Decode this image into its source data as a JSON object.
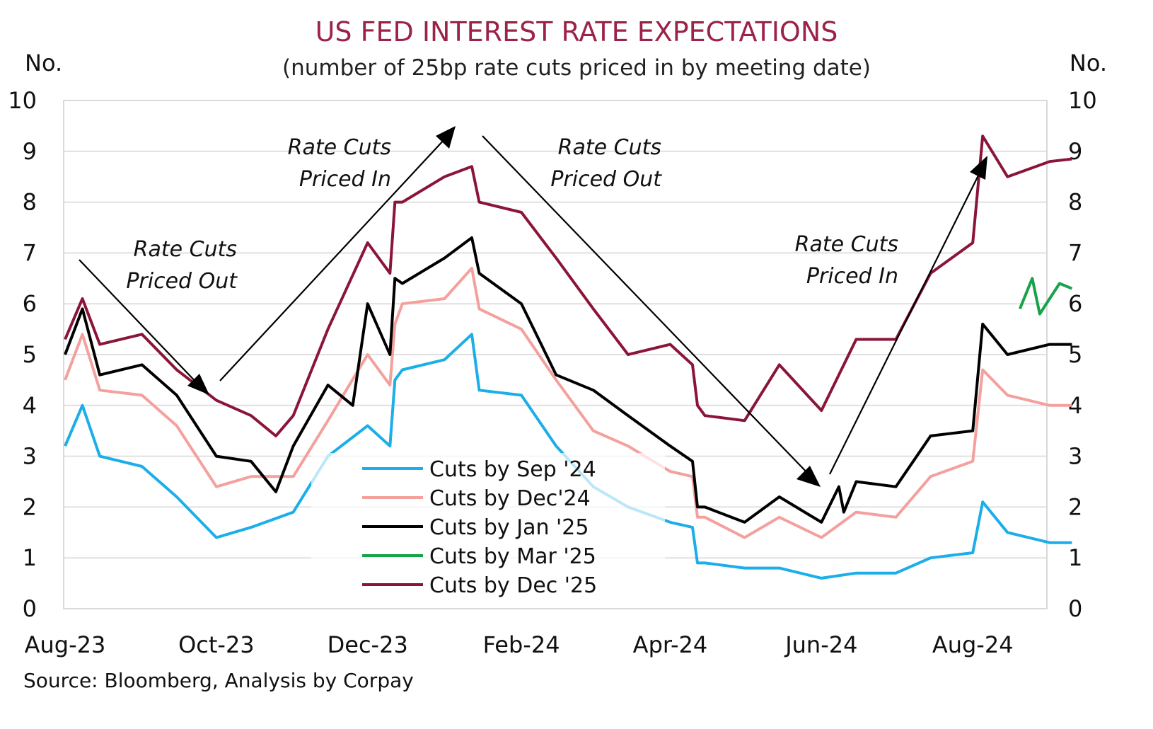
{
  "chart_data": {
    "type": "line",
    "title": "US FED INTEREST RATE EXPECTATIONS",
    "subtitle": "(number of 25bp rate cuts priced in by meeting date)",
    "ylabel_left": "No.",
    "ylabel_right": "No.",
    "ylim": [
      0,
      10
    ],
    "yticks": [
      "0",
      "1",
      "2",
      "3",
      "4",
      "5",
      "6",
      "7",
      "8",
      "9",
      "10"
    ],
    "xlim": [
      "2023-08-01",
      "2024-09-15"
    ],
    "xticks": [
      {
        "label": "Aug-23",
        "date": "2023-08-01"
      },
      {
        "label": "Oct-23",
        "date": "2023-10-01"
      },
      {
        "label": "Dec-23",
        "date": "2023-12-01"
      },
      {
        "label": "Feb-24",
        "date": "2024-02-01"
      },
      {
        "label": "Apr-24",
        "date": "2024-04-01"
      },
      {
        "label": "Jun-24",
        "date": "2024-06-01"
      },
      {
        "label": "Aug-24",
        "date": "2024-08-01"
      }
    ],
    "grid": true,
    "legend_position": "bottom-center",
    "source": "Source: Bloomberg, Analysis by Corpay",
    "annotations": [
      {
        "line1": "Rate Cuts",
        "line2": "Priced Out"
      },
      {
        "line1": "Rate Cuts",
        "line2": "Priced In"
      },
      {
        "line1": "Rate Cuts",
        "line2": "Priced Out"
      },
      {
        "line1": "Rate Cuts",
        "line2": "Priced In"
      }
    ],
    "series": [
      {
        "name": "Cuts by Sep '24",
        "color": "#1BAEE8",
        "points": [
          [
            "2023-08-01",
            3.2
          ],
          [
            "2023-08-08",
            4.0
          ],
          [
            "2023-08-15",
            3.0
          ],
          [
            "2023-09-01",
            2.8
          ],
          [
            "2023-09-15",
            2.2
          ],
          [
            "2023-10-01",
            1.4
          ],
          [
            "2023-10-15",
            1.6
          ],
          [
            "2023-11-01",
            1.9
          ],
          [
            "2023-11-15",
            3.0
          ],
          [
            "2023-12-01",
            3.6
          ],
          [
            "2023-12-10",
            3.2
          ],
          [
            "2023-12-12",
            4.5
          ],
          [
            "2023-12-15",
            4.7
          ],
          [
            "2024-01-01",
            4.9
          ],
          [
            "2024-01-12",
            5.4
          ],
          [
            "2024-01-15",
            4.3
          ],
          [
            "2024-02-01",
            4.2
          ],
          [
            "2024-02-15",
            3.2
          ],
          [
            "2024-03-01",
            2.4
          ],
          [
            "2024-03-15",
            2.0
          ],
          [
            "2024-04-01",
            1.7
          ],
          [
            "2024-04-10",
            1.6
          ],
          [
            "2024-04-12",
            0.9
          ],
          [
            "2024-04-15",
            0.9
          ],
          [
            "2024-05-01",
            0.8
          ],
          [
            "2024-05-15",
            0.8
          ],
          [
            "2024-06-01",
            0.6
          ],
          [
            "2024-06-15",
            0.7
          ],
          [
            "2024-07-01",
            0.7
          ],
          [
            "2024-07-15",
            1.0
          ],
          [
            "2024-08-01",
            1.1
          ],
          [
            "2024-08-05",
            2.1
          ],
          [
            "2024-08-15",
            1.5
          ],
          [
            "2024-09-01",
            1.3
          ],
          [
            "2024-09-10",
            1.3
          ]
        ]
      },
      {
        "name": "Cuts by Dec'24",
        "color": "#F4A09C",
        "points": [
          [
            "2023-08-01",
            4.5
          ],
          [
            "2023-08-08",
            5.4
          ],
          [
            "2023-08-15",
            4.3
          ],
          [
            "2023-09-01",
            4.2
          ],
          [
            "2023-09-15",
            3.6
          ],
          [
            "2023-10-01",
            2.4
          ],
          [
            "2023-10-15",
            2.6
          ],
          [
            "2023-11-01",
            2.6
          ],
          [
            "2023-11-15",
            3.7
          ],
          [
            "2023-12-01",
            5.0
          ],
          [
            "2023-12-10",
            4.4
          ],
          [
            "2023-12-12",
            5.6
          ],
          [
            "2023-12-15",
            6.0
          ],
          [
            "2024-01-01",
            6.1
          ],
          [
            "2024-01-12",
            6.7
          ],
          [
            "2024-01-15",
            5.9
          ],
          [
            "2024-02-01",
            5.5
          ],
          [
            "2024-02-15",
            4.5
          ],
          [
            "2024-03-01",
            3.5
          ],
          [
            "2024-03-15",
            3.2
          ],
          [
            "2024-04-01",
            2.7
          ],
          [
            "2024-04-10",
            2.6
          ],
          [
            "2024-04-12",
            1.8
          ],
          [
            "2024-04-15",
            1.8
          ],
          [
            "2024-05-01",
            1.4
          ],
          [
            "2024-05-15",
            1.8
          ],
          [
            "2024-06-01",
            1.4
          ],
          [
            "2024-06-15",
            1.9
          ],
          [
            "2024-07-01",
            1.8
          ],
          [
            "2024-07-15",
            2.6
          ],
          [
            "2024-08-01",
            2.9
          ],
          [
            "2024-08-05",
            4.7
          ],
          [
            "2024-08-15",
            4.2
          ],
          [
            "2024-09-01",
            4.0
          ],
          [
            "2024-09-10",
            4.0
          ]
        ]
      },
      {
        "name": "Cuts by Jan '25",
        "color": "#000000",
        "points": [
          [
            "2023-08-01",
            5.0
          ],
          [
            "2023-08-08",
            5.9
          ],
          [
            "2023-08-15",
            4.6
          ],
          [
            "2023-09-01",
            4.8
          ],
          [
            "2023-09-15",
            4.2
          ],
          [
            "2023-10-01",
            3.0
          ],
          [
            "2023-10-15",
            2.9
          ],
          [
            "2023-10-25",
            2.3
          ],
          [
            "2023-11-01",
            3.2
          ],
          [
            "2023-11-15",
            4.4
          ],
          [
            "2023-11-25",
            4.0
          ],
          [
            "2023-12-01",
            6.0
          ],
          [
            "2023-12-10",
            5.0
          ],
          [
            "2023-12-12",
            6.5
          ],
          [
            "2023-12-15",
            6.4
          ],
          [
            "2024-01-01",
            6.9
          ],
          [
            "2024-01-12",
            7.3
          ],
          [
            "2024-01-15",
            6.6
          ],
          [
            "2024-02-01",
            6.0
          ],
          [
            "2024-02-15",
            4.6
          ],
          [
            "2024-03-01",
            4.3
          ],
          [
            "2024-03-15",
            3.8
          ],
          [
            "2024-04-01",
            3.2
          ],
          [
            "2024-04-10",
            2.9
          ],
          [
            "2024-04-12",
            2.0
          ],
          [
            "2024-04-15",
            2.0
          ],
          [
            "2024-05-01",
            1.7
          ],
          [
            "2024-05-15",
            2.2
          ],
          [
            "2024-06-01",
            1.7
          ],
          [
            "2024-06-08",
            2.4
          ],
          [
            "2024-06-10",
            1.9
          ],
          [
            "2024-06-15",
            2.5
          ],
          [
            "2024-07-01",
            2.4
          ],
          [
            "2024-07-15",
            3.4
          ],
          [
            "2024-08-01",
            3.5
          ],
          [
            "2024-08-05",
            5.6
          ],
          [
            "2024-08-15",
            5.0
          ],
          [
            "2024-09-01",
            5.2
          ],
          [
            "2024-09-10",
            5.2
          ]
        ]
      },
      {
        "name": "Cuts by Mar '25",
        "color": "#16A34A",
        "points": [
          [
            "2024-08-20",
            5.9
          ],
          [
            "2024-08-25",
            6.5
          ],
          [
            "2024-08-28",
            5.8
          ],
          [
            "2024-09-01",
            6.1
          ],
          [
            "2024-09-05",
            6.4
          ],
          [
            "2024-09-10",
            6.3
          ]
        ]
      },
      {
        "name": "Cuts by Dec '25",
        "color": "#8B1538",
        "points": [
          [
            "2023-08-01",
            5.3
          ],
          [
            "2023-08-08",
            6.1
          ],
          [
            "2023-08-15",
            5.2
          ],
          [
            "2023-09-01",
            5.4
          ],
          [
            "2023-09-15",
            4.7
          ],
          [
            "2023-10-01",
            4.1
          ],
          [
            "2023-10-15",
            3.8
          ],
          [
            "2023-10-25",
            3.4
          ],
          [
            "2023-11-01",
            3.8
          ],
          [
            "2023-11-15",
            5.5
          ],
          [
            "2023-12-01",
            7.2
          ],
          [
            "2023-12-10",
            6.6
          ],
          [
            "2023-12-12",
            8.0
          ],
          [
            "2023-12-15",
            8.0
          ],
          [
            "2024-01-01",
            8.5
          ],
          [
            "2024-01-12",
            8.7
          ],
          [
            "2024-01-15",
            8.0
          ],
          [
            "2024-02-01",
            7.8
          ],
          [
            "2024-02-15",
            6.9
          ],
          [
            "2024-03-01",
            5.9
          ],
          [
            "2024-03-15",
            5.0
          ],
          [
            "2024-04-01",
            5.2
          ],
          [
            "2024-04-10",
            4.8
          ],
          [
            "2024-04-12",
            4.0
          ],
          [
            "2024-04-15",
            3.8
          ],
          [
            "2024-05-01",
            3.7
          ],
          [
            "2024-05-15",
            4.8
          ],
          [
            "2024-06-01",
            3.9
          ],
          [
            "2024-06-15",
            5.3
          ],
          [
            "2024-07-01",
            5.3
          ],
          [
            "2024-07-15",
            6.6
          ],
          [
            "2024-08-01",
            7.2
          ],
          [
            "2024-08-05",
            9.3
          ],
          [
            "2024-08-15",
            8.5
          ],
          [
            "2024-09-01",
            8.8
          ],
          [
            "2024-09-10",
            8.85
          ]
        ]
      }
    ]
  }
}
